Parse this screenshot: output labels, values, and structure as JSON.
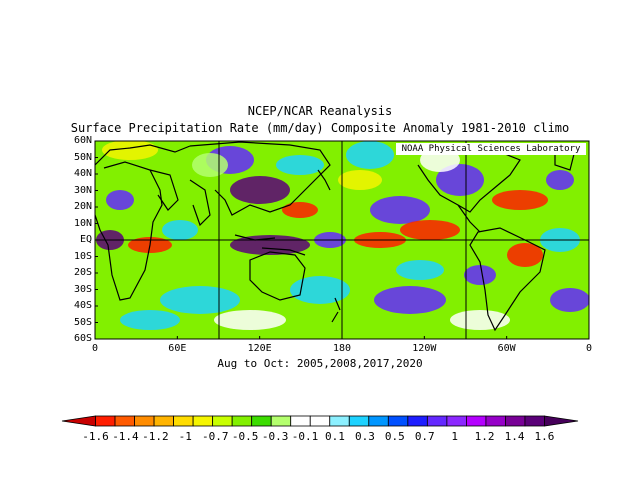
{
  "title_line1": "NCEP/NCAR Reanalysis",
  "title_line2": "Surface Precipitation Rate (mm/day) Composite Anomaly 1981-2010 climo",
  "credit": "NOAA Physical Sciences Laboratory",
  "subtitle": "Aug to Oct: 2005,2008,2017,2020",
  "lat_labels": [
    "60N",
    "50N",
    "40N",
    "30N",
    "20N",
    "10N",
    "EQ",
    "10S",
    "20S",
    "30S",
    "40S",
    "50S",
    "60S"
  ],
  "lon_labels": [
    "0",
    "60E",
    "120E",
    "180",
    "120W",
    "60W",
    "0"
  ],
  "colorbar": {
    "labels": [
      "-1.6",
      "-1.4",
      "-1.2",
      "-1",
      "-0.7",
      "-0.5",
      "-0.3",
      "-0.1",
      "0.1",
      "0.3",
      "0.5",
      "0.7",
      "1",
      "1.2",
      "1.4",
      "1.6"
    ],
    "colors": [
      "#c80000",
      "#ff1e00",
      "#ff5a00",
      "#ff8c00",
      "#ffb400",
      "#ffdc00",
      "#f5f500",
      "#c8ff00",
      "#82f000",
      "#3cdc00",
      "#b4ff6e",
      "#ffffff",
      "#ffffff",
      "#8cf0ff",
      "#1ed2ff",
      "#0096ff",
      "#0050ff",
      "#1e1eff",
      "#6428ff",
      "#8c28ff",
      "#b400ff",
      "#9600c8",
      "#780096",
      "#5a0078",
      "#46005a"
    ]
  },
  "map_colors": {
    "wet_strong": "#5a0078",
    "wet": "#6428ff",
    "wet_light": "#1ed2ff",
    "neutral": "#ffffff",
    "dry_light": "#b4ff6e",
    "dry": "#f5f500",
    "dry_strong": "#ff1e00"
  }
}
